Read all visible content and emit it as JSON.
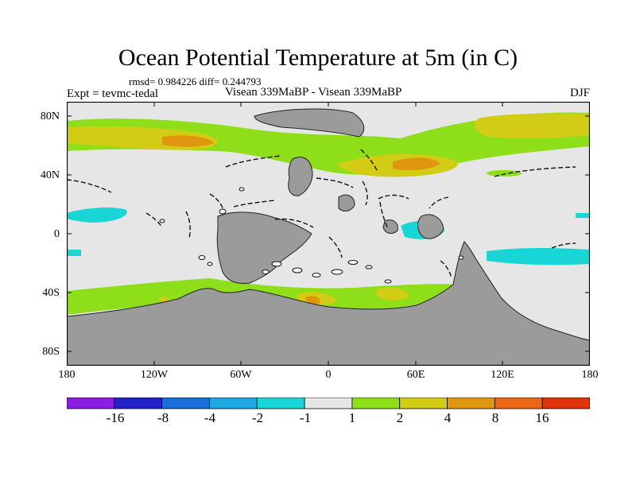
{
  "title": "Ocean Potential Temperature at 5m (in C)",
  "stats": "rmsd= 0.984226 diff= 0.244793",
  "experiment": "Expt = tevmc-tedal",
  "comparison": "Visean 339MaBP - Visean 339MaBP",
  "season": "DJF",
  "lat_ticks": [
    "80N",
    "40N",
    "0",
    "40S",
    "80S"
  ],
  "lon_ticks": [
    "180",
    "120W",
    "60W",
    "0",
    "60E",
    "120E",
    "180"
  ],
  "colorbar": {
    "labels": [
      "-16",
      "-8",
      "-4",
      "-2",
      "-1",
      "1",
      "2",
      "4",
      "8",
      "16"
    ],
    "colors": [
      "#8a1fe0",
      "#2323c8",
      "#1a6fd8",
      "#1fa8e0",
      "#19d6d6",
      "#e6e6e6",
      "#8ede1a",
      "#d2cc14",
      "#e0960e",
      "#e86818",
      "#e0340c"
    ]
  },
  "colors": {
    "land": "#9b9b9b",
    "neutral": "#e6e6e6",
    "green": "#8ede1a",
    "yellow": "#d2cc14",
    "orange": "#e0960e",
    "cyan": "#19d6d6"
  }
}
